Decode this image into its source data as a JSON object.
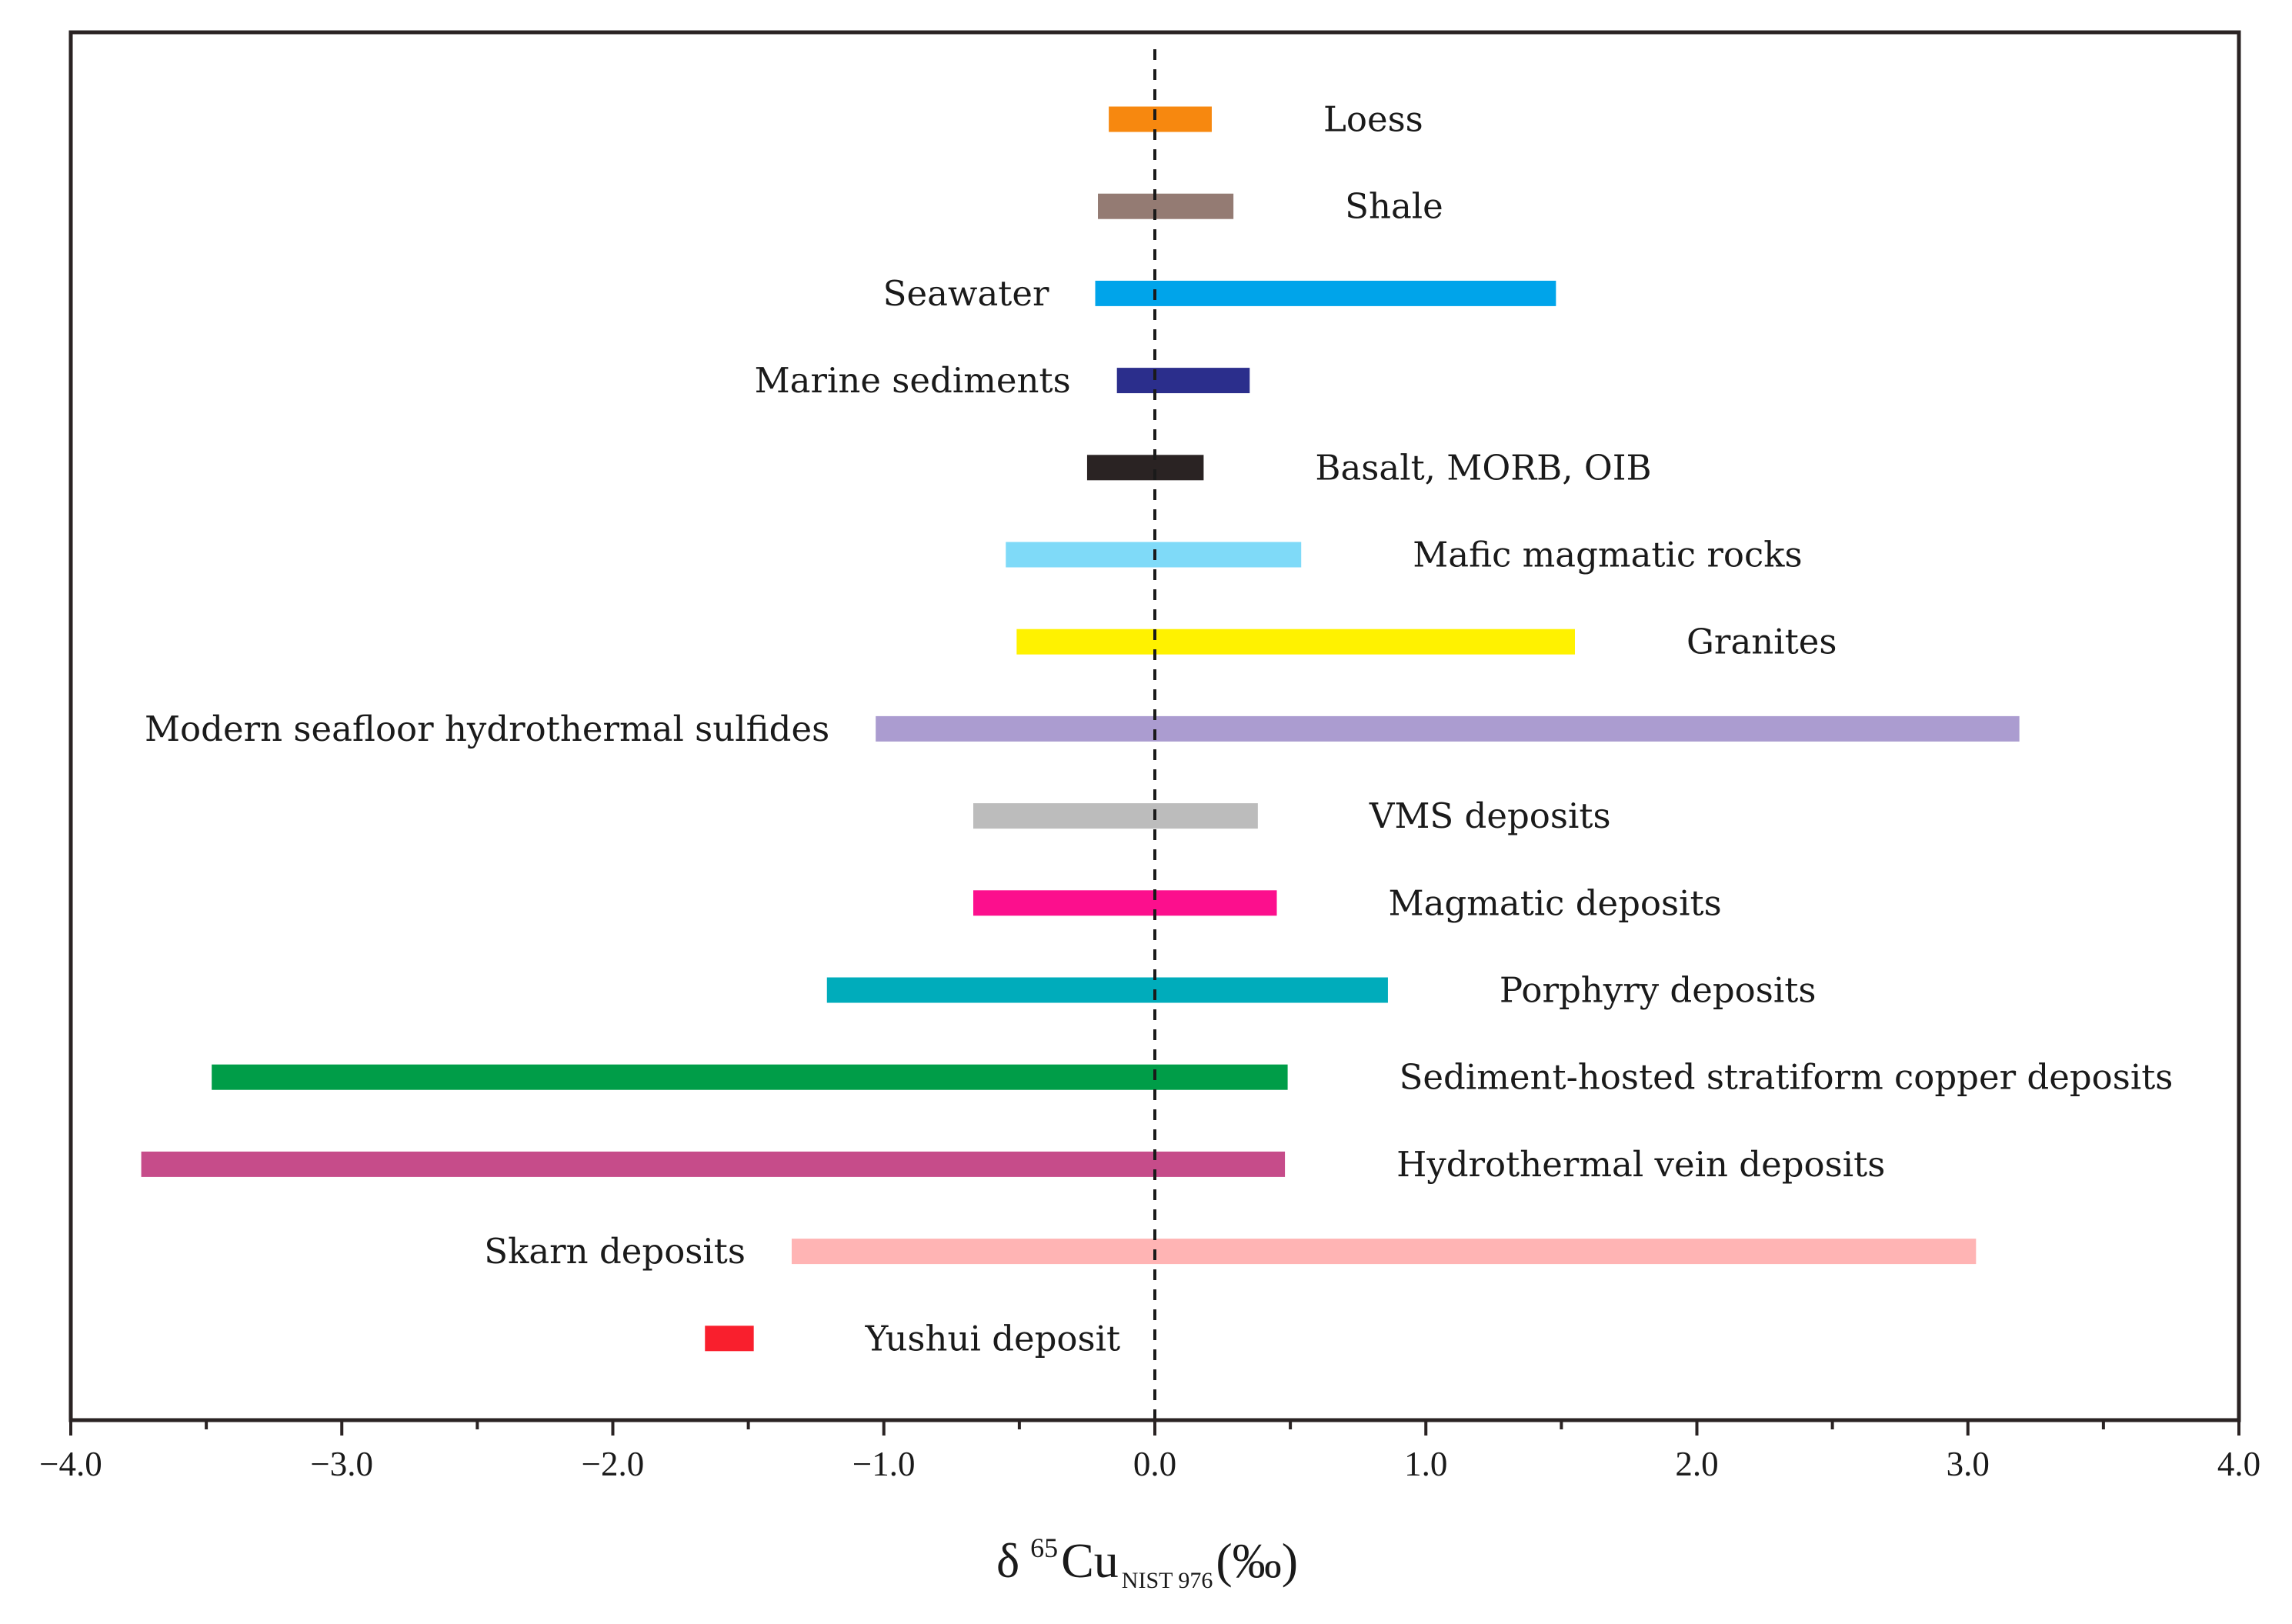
{
  "chart_data": {
    "type": "range-bar",
    "title": "",
    "xlabel": {
      "symbol": "δ",
      "superscript": "65",
      "element": "Cu",
      "subscript": "NIST 976",
      "unit": "(‰)"
    },
    "ylabel": "",
    "xlim": [
      -4.0,
      4.0
    ],
    "x_ticks": [
      -4.0,
      -3.0,
      -2.0,
      -1.0,
      0.0,
      1.0,
      2.0,
      3.0,
      4.0
    ],
    "x_tick_labels": [
      "−4.0",
      "−3.0",
      "−2.0",
      "−1.0",
      "0.0",
      "1.0",
      "2.0",
      "3.0",
      "4.0"
    ],
    "minor_ticks": [
      -3.5,
      -2.5,
      -1.5,
      -0.5,
      0.5,
      1.5,
      2.5,
      3.5
    ],
    "reference_line": 0.0,
    "grid": false,
    "legend": "none",
    "series": [
      {
        "name": "Loess",
        "min": -0.17,
        "max": 0.21,
        "color": "#f7880f",
        "label_side": "right"
      },
      {
        "name": "Shale",
        "min": -0.21,
        "max": 0.29,
        "color": "#947b73",
        "label_side": "right"
      },
      {
        "name": "Seawater",
        "min": -0.22,
        "max": 1.48,
        "color": "#00a4ea",
        "label_side": "left"
      },
      {
        "name": "Marine sediments",
        "min": -0.14,
        "max": 0.35,
        "color": "#2b2e8c",
        "label_side": "left"
      },
      {
        "name": "Basalt, MORB, OIB",
        "min": -0.25,
        "max": 0.18,
        "color": "#2a2323",
        "label_side": "right"
      },
      {
        "name": "Mafic magmatic rocks",
        "min": -0.55,
        "max": 0.54,
        "color": "#7fdaf8",
        "label_side": "right"
      },
      {
        "name": "Granites",
        "min": -0.51,
        "max": 1.55,
        "color": "#fff200",
        "label_side": "right"
      },
      {
        "name": "Modern seafloor hydrothermal sulfides",
        "min": -1.03,
        "max": 3.19,
        "color": "#ab9cd0",
        "label_side": "left"
      },
      {
        "name": "VMS deposits",
        "min": -0.67,
        "max": 0.38,
        "color": "#bcbcbc",
        "label_side": "right"
      },
      {
        "name": "Magmatic deposits",
        "min": -0.67,
        "max": 0.45,
        "color": "#fc0f8d",
        "label_side": "right"
      },
      {
        "name": "Porphyry deposits",
        "min": -1.21,
        "max": 0.86,
        "color": "#00acbb",
        "label_side": "right"
      },
      {
        "name": "Sediment-hosted stratiform copper deposits",
        "min": -3.48,
        "max": 0.49,
        "color": "#009d48",
        "label_side": "right"
      },
      {
        "name": "Hydrothermal vein deposits",
        "min": -3.74,
        "max": 0.48,
        "color": "#c64c8a",
        "label_side": "right"
      },
      {
        "name": "Skarn deposits",
        "min": -1.34,
        "max": 3.03,
        "color": "#ffb4b4",
        "label_side": "left"
      },
      {
        "name": "Yushui  deposit",
        "min": -1.66,
        "max": -1.48,
        "color": "#f91f2d",
        "label_side": "right"
      }
    ]
  }
}
